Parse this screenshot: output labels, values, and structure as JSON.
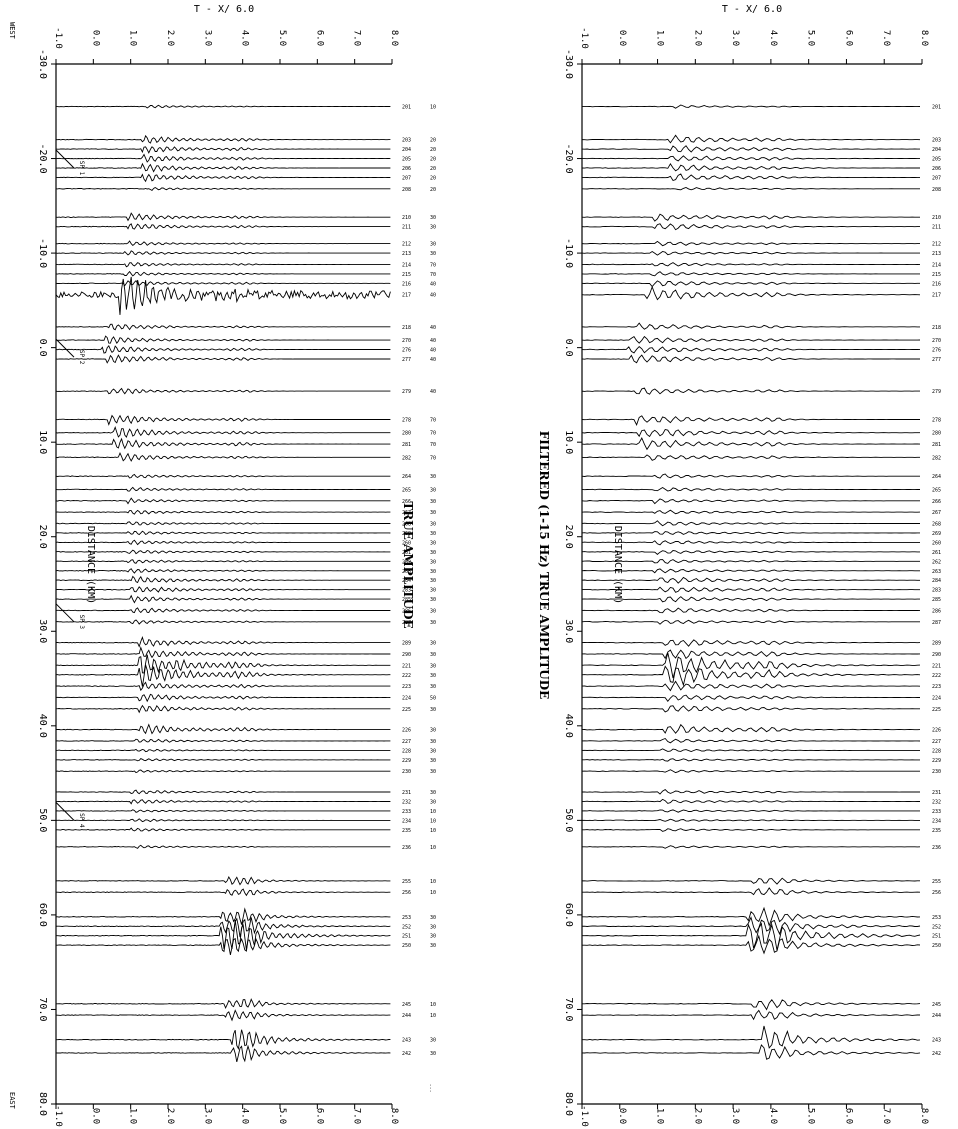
{
  "figure": {
    "west_label": "WEST",
    "east_label": "EAST"
  },
  "chart_data": [
    {
      "type": "line",
      "panel": "left",
      "title": "TRUE AMPLITUDE",
      "time_label": "T - X/ 6.0",
      "distance_label": "DISTANCE (KM)",
      "distance_ticks": [
        "-30.0",
        "-20.0",
        "-10.0",
        "0.0",
        "10.0",
        "20.0",
        "30.0",
        "40.0",
        "50.0",
        "60.0",
        "70.0",
        "80.0"
      ],
      "time_ticks": [
        "-1.0",
        "0.0",
        "1.0",
        "2.0",
        "3.0",
        "4.0",
        "5.0",
        "6.0",
        "7.0",
        "8.0"
      ],
      "distance_range": [
        -30,
        80
      ],
      "time_range": [
        -1,
        8
      ],
      "shotpoints": [
        {
          "label": "SP 1",
          "distance": -19
        },
        {
          "label": "SP 2",
          "distance": 1
        },
        {
          "label": "SP 3",
          "distance": 29
        },
        {
          "label": "SP 4",
          "distance": 50
        }
      ],
      "footnote": "..."
    },
    {
      "type": "line",
      "panel": "right",
      "title": "FILTERED (1-15 Hz) TRUE AMPLITUDE",
      "time_label": "T - X/ 6.0",
      "distance_label": "DISTANCE (KM)",
      "distance_ticks": [
        "-30.0",
        "-20.0",
        "-10.0",
        "0.0",
        "10.0",
        "20.0",
        "30.0",
        "40.0",
        "50.0",
        "60.0",
        "70.0",
        "80.0"
      ],
      "time_ticks": [
        "-1.0",
        "0.0",
        "1.0",
        "2.0",
        "3.0",
        "4.0",
        "5.0",
        "6.0",
        "7.0",
        "8.0"
      ],
      "distance_range": [
        -30,
        80
      ],
      "time_range": [
        -1,
        8
      ],
      "footnote": "..."
    }
  ],
  "traces": [
    {
      "d": -25.5,
      "id": "201",
      "code": "10",
      "amp": 0.2,
      "onset": 1.4
    },
    {
      "d": -22.0,
      "id": "203",
      "code": "20",
      "amp": 0.5,
      "onset": 1.3
    },
    {
      "d": -21.0,
      "id": "204",
      "code": "20",
      "amp": 0.5,
      "onset": 1.3
    },
    {
      "d": -20.0,
      "id": "205",
      "code": "20",
      "amp": 0.5,
      "onset": 1.3
    },
    {
      "d": -19.0,
      "id": "206",
      "code": "20",
      "amp": 0.5,
      "onset": 1.3
    },
    {
      "d": -18.0,
      "id": "207",
      "code": "20",
      "amp": 0.5,
      "onset": 1.3
    },
    {
      "d": -16.8,
      "id": "208",
      "code": "20",
      "amp": 0.2,
      "onset": 1.5
    },
    {
      "d": -13.8,
      "id": "210",
      "code": "30",
      "amp": 0.5,
      "onset": 0.9
    },
    {
      "d": -12.8,
      "id": "211",
      "code": "30",
      "amp": 0.5,
      "onset": 0.9
    },
    {
      "d": -11.0,
      "id": "212",
      "code": "30",
      "amp": 0.3,
      "onset": 0.9
    },
    {
      "d": -10.0,
      "id": "213",
      "code": "30",
      "amp": 0.3,
      "onset": 0.8
    },
    {
      "d": -8.8,
      "id": "214",
      "code": "70",
      "amp": 0.3,
      "onset": 0.8
    },
    {
      "d": -7.8,
      "id": "215",
      "code": "70",
      "amp": 0.3,
      "onset": 0.8
    },
    {
      "d": -6.8,
      "id": "216",
      "code": "40",
      "amp": 0.4,
      "onset": 0.8
    },
    {
      "d": -5.6,
      "id": "217",
      "code": "40",
      "amp": 1.8,
      "onset": 0.7
    },
    {
      "d": -2.2,
      "id": "218",
      "code": "40",
      "amp": 0.5,
      "onset": 0.4
    },
    {
      "d": -0.8,
      "id": "270",
      "code": "40",
      "amp": 0.5,
      "onset": 0.3
    },
    {
      "d": 0.2,
      "id": "276",
      "code": "40",
      "amp": 0.6,
      "onset": 0.2
    },
    {
      "d": 1.2,
      "id": "277",
      "code": "40",
      "amp": 0.6,
      "onset": 0.3
    },
    {
      "d": 4.6,
      "id": "279",
      "code": "40",
      "amp": 0.5,
      "onset": 0.4
    },
    {
      "d": 7.6,
      "id": "278",
      "code": "70",
      "amp": 0.7,
      "onset": 0.4
    },
    {
      "d": 9.0,
      "id": "280",
      "code": "70",
      "amp": 0.7,
      "onset": 0.5
    },
    {
      "d": 10.2,
      "id": "281",
      "code": "70",
      "amp": 0.7,
      "onset": 0.5
    },
    {
      "d": 11.6,
      "id": "282",
      "code": "70",
      "amp": 0.5,
      "onset": 0.7
    },
    {
      "d": 13.6,
      "id": "264",
      "code": "30",
      "amp": 0.3,
      "onset": 0.9
    },
    {
      "d": 15.0,
      "id": "265",
      "code": "30",
      "amp": 0.3,
      "onset": 0.9
    },
    {
      "d": 16.2,
      "id": "266",
      "code": "30",
      "amp": 0.3,
      "onset": 0.9
    },
    {
      "d": 17.4,
      "id": "267",
      "code": "30",
      "amp": 0.3,
      "onset": 0.9
    },
    {
      "d": 18.6,
      "id": "268",
      "code": "30",
      "amp": 0.3,
      "onset": 0.9
    },
    {
      "d": 19.6,
      "id": "269",
      "code": "30",
      "amp": 0.3,
      "onset": 0.9
    },
    {
      "d": 20.6,
      "id": "260",
      "code": "30",
      "amp": 0.3,
      "onset": 0.9
    },
    {
      "d": 21.6,
      "id": "261",
      "code": "30",
      "amp": 0.3,
      "onset": 0.9
    },
    {
      "d": 22.6,
      "id": "262",
      "code": "30",
      "amp": 0.3,
      "onset": 0.9
    },
    {
      "d": 23.6,
      "id": "263",
      "code": "30",
      "amp": 0.3,
      "onset": 0.9
    },
    {
      "d": 24.6,
      "id": "284",
      "code": "30",
      "amp": 0.5,
      "onset": 1.0
    },
    {
      "d": 25.6,
      "id": "283",
      "code": "30",
      "amp": 0.5,
      "onset": 1.0
    },
    {
      "d": 26.6,
      "id": "285",
      "code": "30",
      "amp": 0.4,
      "onset": 1.0
    },
    {
      "d": 27.8,
      "id": "286",
      "code": "30",
      "amp": 0.4,
      "onset": 1.0
    },
    {
      "d": 29.0,
      "id": "287",
      "code": "30",
      "amp": 0.3,
      "onset": 1.0
    },
    {
      "d": 31.2,
      "id": "289",
      "code": "30",
      "amp": 0.6,
      "onset": 1.2
    },
    {
      "d": 32.4,
      "id": "290",
      "code": "30",
      "amp": 0.7,
      "onset": 1.2
    },
    {
      "d": 33.6,
      "id": "221",
      "code": "30",
      "amp": 1.1,
      "onset": 1.2
    },
    {
      "d": 34.6,
      "id": "222",
      "code": "30",
      "amp": 1.1,
      "onset": 1.2
    },
    {
      "d": 35.8,
      "id": "223",
      "code": "30",
      "amp": 0.6,
      "onset": 1.2
    },
    {
      "d": 37.0,
      "id": "224",
      "code": "50",
      "amp": 0.5,
      "onset": 1.2
    },
    {
      "d": 38.2,
      "id": "225",
      "code": "30",
      "amp": 0.5,
      "onset": 1.2
    },
    {
      "d": 40.4,
      "id": "226",
      "code": "30",
      "amp": 0.7,
      "onset": 1.2
    },
    {
      "d": 41.6,
      "id": "227",
      "code": "30",
      "amp": 0.3,
      "onset": 1.1
    },
    {
      "d": 42.6,
      "id": "228",
      "code": "30",
      "amp": 0.2,
      "onset": 1.1
    },
    {
      "d": 43.6,
      "id": "229",
      "code": "30",
      "amp": 0.2,
      "onset": 1.1
    },
    {
      "d": 44.8,
      "id": "230",
      "code": "30",
      "amp": 0.2,
      "onset": 1.1
    },
    {
      "d": 47.0,
      "id": "231",
      "code": "30",
      "amp": 0.3,
      "onset": 1.0
    },
    {
      "d": 48.0,
      "id": "232",
      "code": "30",
      "amp": 0.3,
      "onset": 1.0
    },
    {
      "d": 49.0,
      "id": "233",
      "code": "10",
      "amp": 0.2,
      "onset": 1.0
    },
    {
      "d": 50.0,
      "id": "234",
      "code": "10",
      "amp": 0.2,
      "onset": 1.0
    },
    {
      "d": 51.0,
      "id": "235",
      "code": "10",
      "amp": 0.2,
      "onset": 1.0
    },
    {
      "d": 52.8,
      "id": "236",
      "code": "10",
      "amp": 0.2,
      "onset": 1.1
    },
    {
      "d": 56.4,
      "id": "255",
      "code": "10",
      "amp": 0.3,
      "onset": 3.5
    },
    {
      "d": 57.6,
      "id": "256",
      "code": "10",
      "amp": 0.3,
      "onset": 3.5
    },
    {
      "d": 60.2,
      "id": "253",
      "code": "30",
      "amp": 0.6,
      "onset": 3.4
    },
    {
      "d": 61.2,
      "id": "252",
      "code": "30",
      "amp": 0.8,
      "onset": 3.4
    },
    {
      "d": 62.2,
      "id": "251",
      "code": "30",
      "amp": 1.0,
      "onset": 3.4
    },
    {
      "d": 63.2,
      "id": "250",
      "code": "30",
      "amp": 0.8,
      "onset": 3.4
    },
    {
      "d": 69.4,
      "id": "245",
      "code": "10",
      "amp": 0.4,
      "onset": 3.5
    },
    {
      "d": 70.6,
      "id": "244",
      "code": "10",
      "amp": 0.4,
      "onset": 3.5
    },
    {
      "d": 73.2,
      "id": "243",
      "code": "30",
      "amp": 0.9,
      "onset": 3.7
    },
    {
      "d": 74.6,
      "id": "242",
      "code": "30",
      "amp": 0.6,
      "onset": 3.7
    }
  ]
}
